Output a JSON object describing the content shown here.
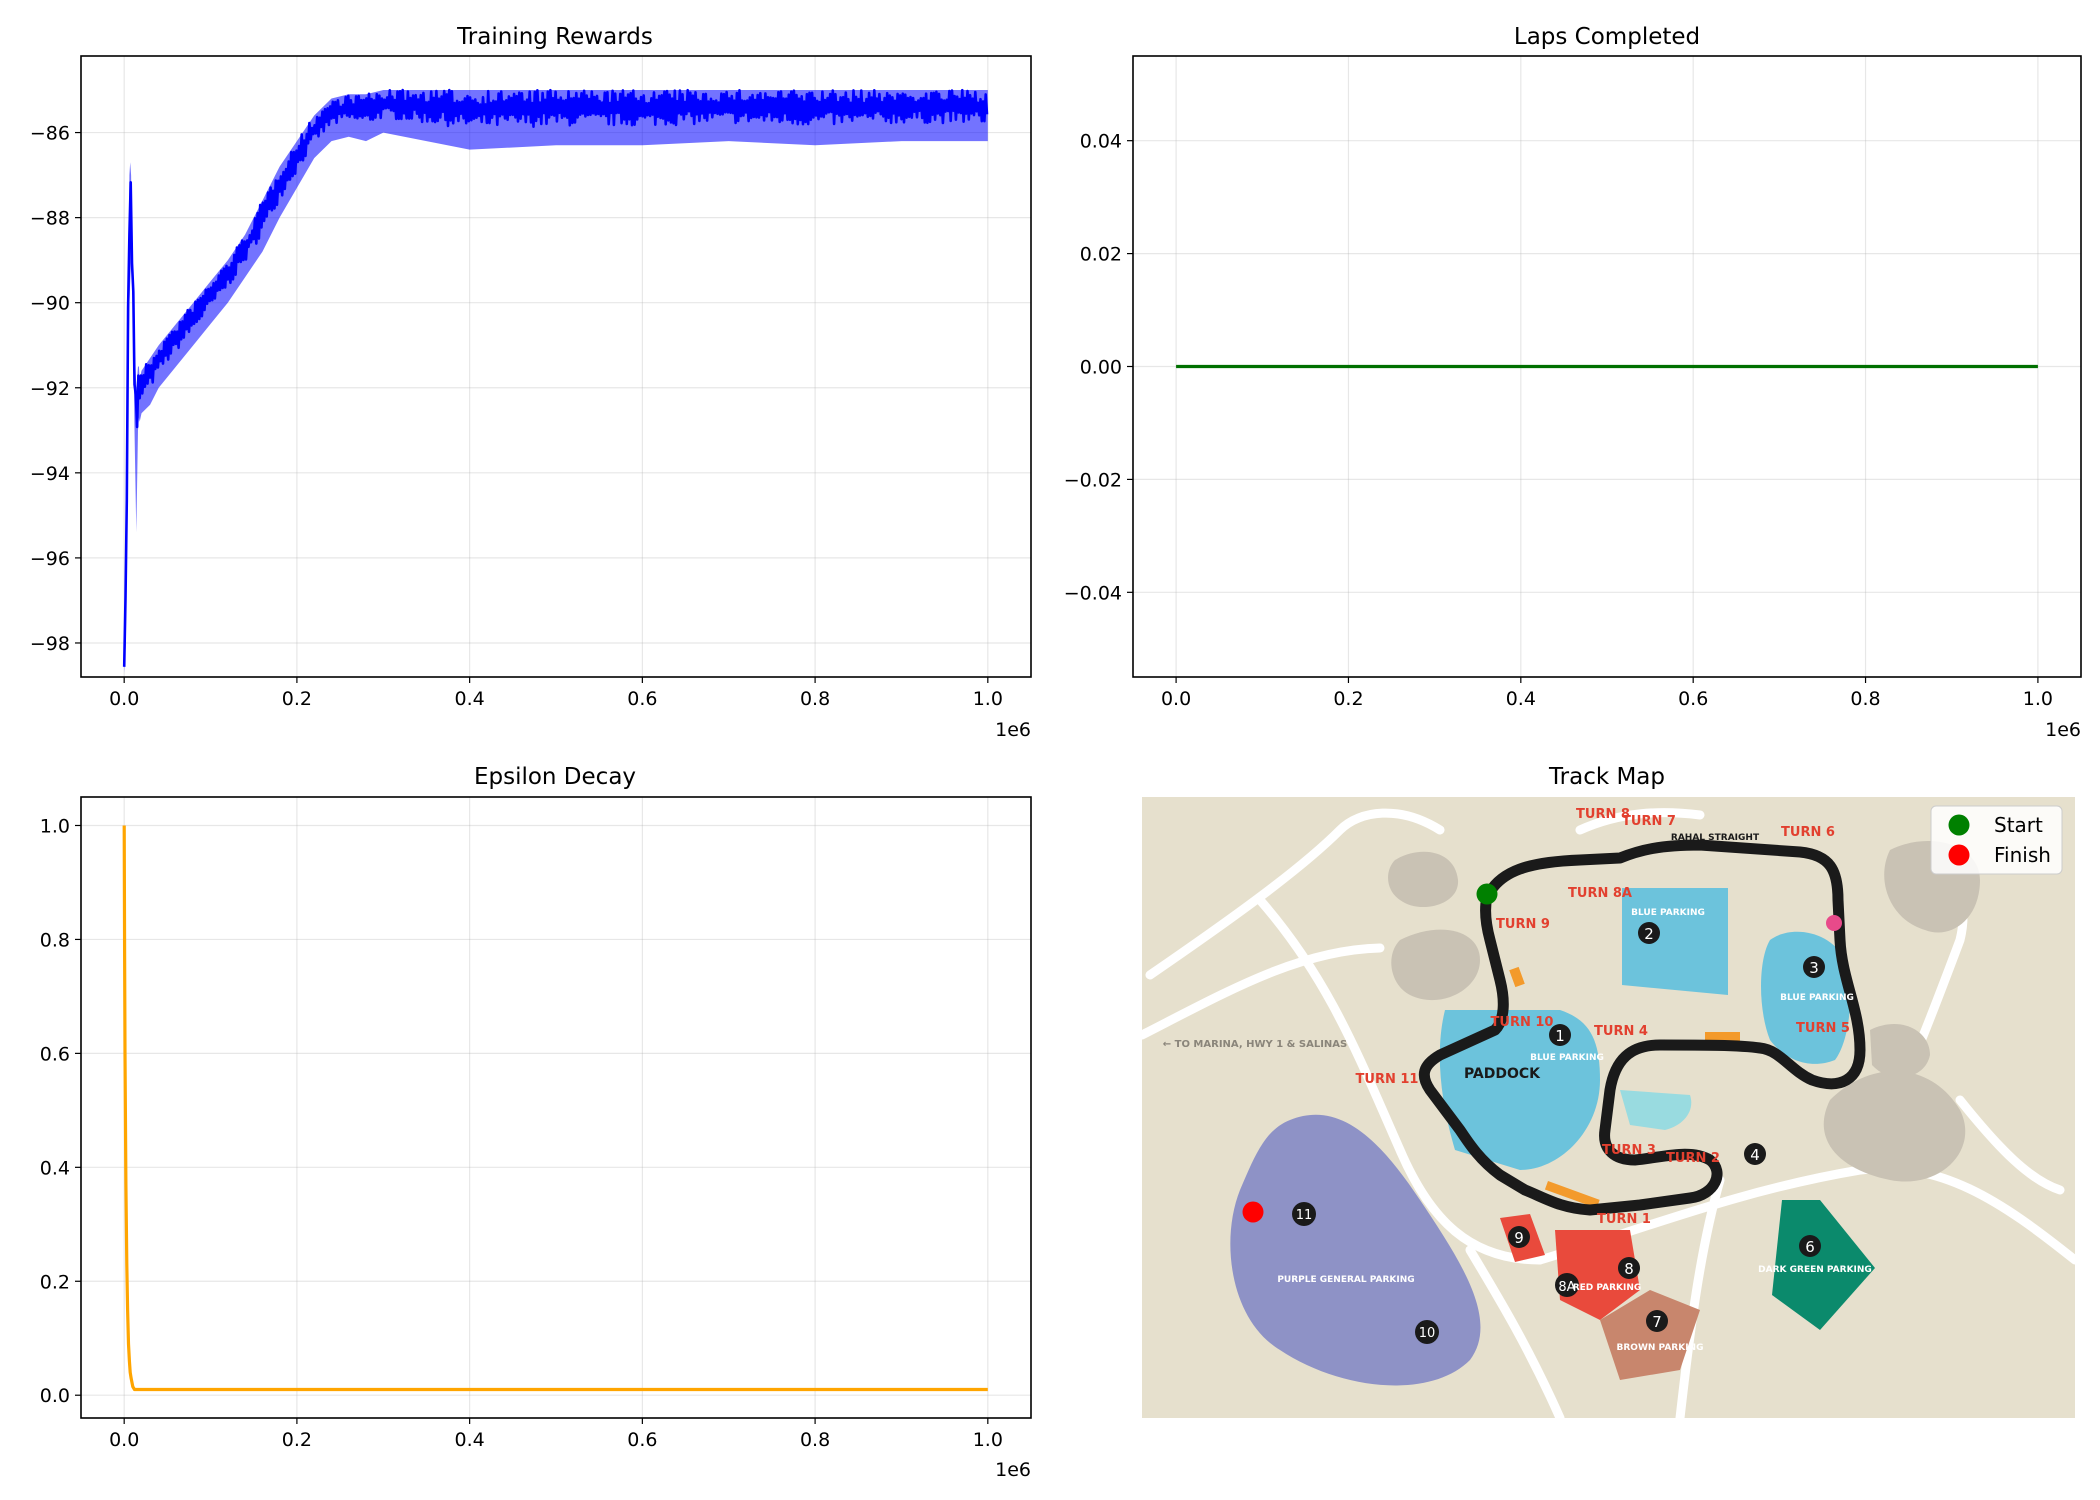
{
  "chart_data": [
    {
      "type": "line",
      "title": "Training Rewards",
      "xlabel": "",
      "ylabel": "",
      "x_offset_label": "1e6",
      "xlim": [
        -50000,
        1050000
      ],
      "ylim": [
        -98.8,
        -84.2
      ],
      "x_ticks": [
        0,
        200000,
        400000,
        600000,
        800000,
        1000000
      ],
      "x_tick_labels": [
        "0.0",
        "0.2",
        "0.4",
        "0.6",
        "0.8",
        "1.0"
      ],
      "y_ticks": [
        -98,
        -96,
        -94,
        -92,
        -90,
        -88,
        -86
      ],
      "y_tick_labels": [
        "−98",
        "−96",
        "−94",
        "−92",
        "−90",
        "−88",
        "−86"
      ],
      "grid": true,
      "color": "#0000ff",
      "series": [
        {
          "x": [
            0,
            2000,
            4000,
            6000,
            7000,
            8000,
            9000,
            10000,
            12000,
            14000,
            16000,
            17000,
            18000,
            20000,
            30000,
            40000,
            60000,
            80000,
            100000,
            120000,
            140000,
            160000,
            180000,
            200000,
            220000,
            240000,
            260000,
            280000,
            300000,
            400000,
            500000,
            600000,
            700000,
            800000,
            900000,
            1000000
          ],
          "y_low": [
            -98.7,
            -98.0,
            -93.0,
            -90.0,
            -89.5,
            -89.0,
            -89.5,
            -90.0,
            -93.0,
            -95.4,
            -93.0,
            -92.7,
            -92.8,
            -92.6,
            -92.4,
            -92.0,
            -91.5,
            -91.0,
            -90.5,
            -90.0,
            -89.4,
            -88.8,
            -88.0,
            -87.3,
            -86.6,
            -86.2,
            -86.1,
            -86.2,
            -86.0,
            -86.4,
            -86.3,
            -86.3,
            -86.2,
            -86.3,
            -86.2,
            -86.2
          ],
          "y_high": [
            -98.3,
            -96.0,
            -91.0,
            -87.0,
            -86.7,
            -87.0,
            -88.5,
            -89.0,
            -91.0,
            -92.0,
            -91.5,
            -91.5,
            -91.8,
            -91.6,
            -91.3,
            -91.0,
            -90.5,
            -90.0,
            -89.5,
            -89.0,
            -88.4,
            -87.6,
            -86.8,
            -86.2,
            -85.6,
            -85.2,
            -85.1,
            -85.1,
            -85.0,
            -85.0,
            -85.0,
            -85.0,
            -85.0,
            -85.0,
            -85.0,
            -85.0
          ]
        }
      ]
    },
    {
      "type": "line",
      "title": "Laps Completed",
      "xlabel": "",
      "ylabel": "",
      "x_offset_label": "1e6",
      "xlim": [
        -50000,
        1050000
      ],
      "ylim": [
        -0.055,
        0.055
      ],
      "x_ticks": [
        0,
        200000,
        400000,
        600000,
        800000,
        1000000
      ],
      "x_tick_labels": [
        "0.0",
        "0.2",
        "0.4",
        "0.6",
        "0.8",
        "1.0"
      ],
      "y_ticks": [
        -0.04,
        -0.02,
        0.0,
        0.02,
        0.04
      ],
      "y_tick_labels": [
        "−0.04",
        "−0.02",
        "0.00",
        "0.02",
        "0.04"
      ],
      "grid": true,
      "color": "#007000",
      "series": [
        {
          "x": [
            0,
            1000000
          ],
          "y": [
            0,
            0
          ]
        }
      ]
    },
    {
      "type": "line",
      "title": "Epsilon Decay",
      "xlabel": "",
      "ylabel": "",
      "x_offset_label": "1e6",
      "xlim": [
        -50000,
        1050000
      ],
      "ylim": [
        -0.04,
        1.05
      ],
      "x_ticks": [
        0,
        200000,
        400000,
        600000,
        800000,
        1000000
      ],
      "x_tick_labels": [
        "0.0",
        "0.2",
        "0.4",
        "0.6",
        "0.8",
        "1.0"
      ],
      "y_ticks": [
        0.0,
        0.2,
        0.4,
        0.6,
        0.8,
        1.0
      ],
      "y_tick_labels": [
        "0.0",
        "0.2",
        "0.4",
        "0.6",
        "0.8",
        "1.0"
      ],
      "grid": true,
      "color": "#ffa500",
      "series": [
        {
          "x": [
            0,
            500,
            1000,
            2000,
            3000,
            4000,
            5000,
            6000,
            7000,
            8000,
            10000,
            12000,
            15000,
            20000,
            1000000
          ],
          "y": [
            1.0,
            0.78,
            0.6,
            0.37,
            0.23,
            0.15,
            0.09,
            0.06,
            0.04,
            0.03,
            0.015,
            0.01,
            0.01,
            0.01,
            0.01
          ]
        }
      ]
    },
    {
      "type": "map",
      "title": "Track Map",
      "legend": {
        "position": "top-right",
        "entries": [
          {
            "label": "Start",
            "color": "#008000"
          },
          {
            "label": "Finish",
            "color": "#ff0000"
          }
        ]
      },
      "map_labels": {
        "turns": [
          "TURN 8",
          "TURN 7",
          "TURN 6",
          "TURN 8A",
          "TURN 9",
          "TURN 10",
          "TURN 4",
          "TURN 5",
          "TURN 11",
          "TURN 3",
          "TURN 2",
          "TURN 1"
        ],
        "areas": [
          "BLUE PARKING",
          "PADDOCK",
          "BLUE PARKING",
          "RED PARKING",
          "BROWN PARKING",
          "DARK GREEN PARKING",
          "PURPLE GENERAL PARKING",
          "BLUE PARKING"
        ],
        "straight": "RAHAL STRAIGHT",
        "direction": "← TO MARINA, HWY 1 & SALINAS",
        "numbers": [
          "1",
          "2",
          "3",
          "4",
          "6",
          "7",
          "8",
          "8A",
          "9",
          "10",
          "11"
        ]
      }
    }
  ]
}
